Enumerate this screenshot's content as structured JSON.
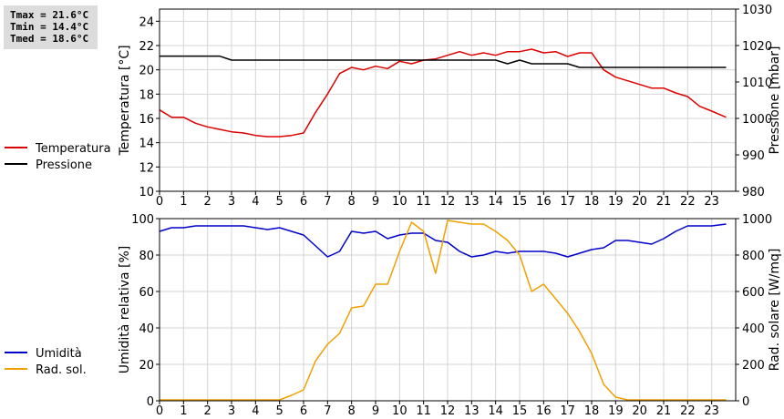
{
  "stats": {
    "lines": [
      "Tmax = 21.6°C",
      "Tmin = 14.4°C",
      "Tmed = 18.6°C"
    ]
  },
  "chart_data": [
    {
      "type": "line",
      "ylabel": "Temperatura [°C]",
      "y2label": "Pressione [mbar]",
      "xlim": [
        0,
        24
      ],
      "ylim": [
        10,
        25
      ],
      "y2lim": [
        980,
        1030
      ],
      "xticks": [
        0,
        1,
        2,
        3,
        4,
        5,
        6,
        7,
        8,
        9,
        10,
        11,
        12,
        13,
        14,
        15,
        16,
        17,
        18,
        19,
        20,
        21,
        22,
        23
      ],
      "yticks": [
        10,
        12,
        14,
        16,
        18,
        20,
        22,
        24
      ],
      "y2ticks": [
        980,
        990,
        1000,
        1010,
        1020,
        1030
      ],
      "grid": true,
      "legend_position": "left",
      "series": [
        {
          "name": "Temperatura",
          "color": "#dd0000",
          "axis": "left",
          "x": [
            0,
            0.5,
            1,
            1.5,
            2,
            2.5,
            3,
            3.5,
            4,
            4.5,
            5,
            5.5,
            6,
            6.5,
            7,
            7.5,
            8,
            8.5,
            9,
            9.5,
            10,
            10.5,
            11,
            11.5,
            12,
            12.5,
            13,
            13.5,
            14,
            14.5,
            15,
            15.5,
            16,
            16.5,
            17,
            17.5,
            18,
            18.5,
            19,
            19.5,
            20,
            20.5,
            21,
            21.5,
            22,
            22.5,
            23,
            23.6
          ],
          "values": [
            16.7,
            16.1,
            16.1,
            15.6,
            15.3,
            15.1,
            14.9,
            14.8,
            14.6,
            14.5,
            14.5,
            14.6,
            14.8,
            16.5,
            18.0,
            19.7,
            20.2,
            20.0,
            20.3,
            20.1,
            20.7,
            20.5,
            20.8,
            20.9,
            21.2,
            21.5,
            21.2,
            21.4,
            21.2,
            21.5,
            21.5,
            21.7,
            21.4,
            21.5,
            21.1,
            21.4,
            21.4,
            20.0,
            19.4,
            19.1,
            18.8,
            18.5,
            18.5,
            18.1,
            17.8,
            17.0,
            16.6,
            16.1
          ]
        },
        {
          "name": "Pressione",
          "color": "#000000",
          "axis": "right",
          "x": [
            0,
            1,
            2,
            2.5,
            3,
            3.5,
            4,
            5,
            6,
            7,
            8,
            9,
            10,
            11,
            12,
            13,
            14,
            14.5,
            15,
            15.5,
            16,
            16.5,
            17,
            17.5,
            18,
            18.5,
            19,
            20,
            21,
            22,
            23,
            23.6
          ],
          "values": [
            1017.1,
            1017.1,
            1017.1,
            1017.1,
            1016.0,
            1016.0,
            1016.0,
            1016.0,
            1016.0,
            1016.0,
            1016.0,
            1016.0,
            1016.0,
            1016.0,
            1016.0,
            1016.0,
            1016.0,
            1015.0,
            1016.0,
            1015.0,
            1015.0,
            1015.0,
            1015.0,
            1014.0,
            1014.0,
            1014.0,
            1014.0,
            1014.0,
            1014.0,
            1014.0,
            1014.0,
            1014.0
          ]
        }
      ]
    },
    {
      "type": "line",
      "ylabel": "Umidità relativa [%]",
      "y2label": "Rad. solare [W/mq]",
      "xlim": [
        0,
        24
      ],
      "ylim": [
        0,
        100
      ],
      "y2lim": [
        0,
        1000
      ],
      "xticks": [
        0,
        1,
        2,
        3,
        4,
        5,
        6,
        7,
        8,
        9,
        10,
        11,
        12,
        13,
        14,
        15,
        16,
        17,
        18,
        19,
        20,
        21,
        22,
        23
      ],
      "yticks": [
        0,
        20,
        40,
        60,
        80,
        100
      ],
      "y2ticks": [
        0,
        200,
        400,
        600,
        800,
        1000
      ],
      "grid": true,
      "legend_position": "left",
      "series": [
        {
          "name": "Umidità",
          "color": "#0000cc",
          "axis": "left",
          "x": [
            0,
            0.5,
            1,
            1.5,
            2,
            2.5,
            3,
            3.5,
            4,
            4.5,
            5,
            5.5,
            6,
            6.5,
            7,
            7.5,
            8,
            8.5,
            9,
            9.5,
            10,
            10.5,
            11,
            11.5,
            12,
            12.5,
            13,
            13.5,
            14,
            14.5,
            15,
            15.5,
            16,
            16.5,
            17,
            17.5,
            18,
            18.5,
            19,
            19.5,
            20,
            20.5,
            21,
            21.5,
            22,
            22.5,
            23,
            23.6
          ],
          "values": [
            93,
            95,
            95,
            96,
            96,
            96,
            96,
            96,
            95,
            94,
            95,
            93,
            91,
            85,
            79,
            82,
            93,
            92,
            93,
            89,
            91,
            92,
            92,
            88,
            87,
            82,
            79,
            80,
            82,
            81,
            82,
            82,
            82,
            81,
            79,
            81,
            83,
            84,
            88,
            88,
            87,
            86,
            89,
            93,
            96,
            96,
            96,
            97
          ]
        },
        {
          "name": "Rad. sol.",
          "color": "#f0a000",
          "axis": "right",
          "x": [
            0,
            0.5,
            1,
            1.5,
            2,
            2.5,
            3,
            3.5,
            4,
            4.5,
            5,
            5.5,
            6,
            6.5,
            7,
            7.5,
            8,
            8.5,
            9,
            9.5,
            10,
            10.5,
            11,
            11.5,
            12,
            12.5,
            13,
            13.5,
            14,
            14.5,
            15,
            15.5,
            16,
            16.5,
            17,
            17.5,
            18,
            18.5,
            19,
            19.5,
            20,
            20.5,
            21,
            21.5,
            22,
            22.5,
            23,
            23.6
          ],
          "values": [
            5,
            5,
            5,
            5,
            5,
            5,
            5,
            5,
            5,
            5,
            5,
            30,
            60,
            220,
            310,
            370,
            510,
            520,
            640,
            640,
            820,
            980,
            930,
            700,
            990,
            980,
            970,
            970,
            930,
            880,
            800,
            600,
            640,
            560,
            480,
            380,
            260,
            90,
            20,
            5,
            5,
            5,
            5,
            5,
            5,
            5,
            5,
            5
          ]
        }
      ]
    }
  ]
}
